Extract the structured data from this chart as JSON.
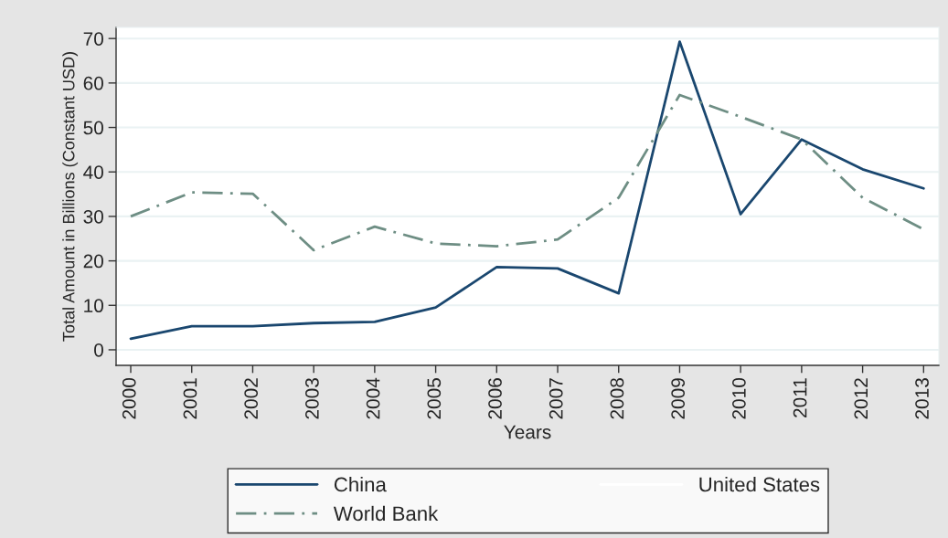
{
  "chart_data": {
    "type": "line",
    "xlabel": "Years",
    "ylabel": "Total Amount in Billions (Constant USD)",
    "x": [
      2000,
      2001,
      2002,
      2003,
      2004,
      2005,
      2006,
      2007,
      2008,
      2009,
      2010,
      2011,
      2012,
      2013
    ],
    "series": [
      {
        "name": "China",
        "color": "#1a476f",
        "line_style": "solid",
        "values": [
          2.5,
          5.3,
          5.3,
          6.0,
          6.3,
          9.5,
          18.6,
          18.3,
          12.7,
          69.3,
          30.5,
          47.3,
          40.6,
          36.3
        ]
      },
      {
        "name": "United States",
        "color": "#ffffff",
        "line_style": "solid",
        "values": [
          null,
          null,
          null,
          null,
          null,
          null,
          null,
          null,
          null,
          null,
          null,
          null,
          null,
          null
        ]
      },
      {
        "name": "World Bank",
        "color": "#6e8e84",
        "line_style": "dashdot",
        "values": [
          30.0,
          35.4,
          35.1,
          22.4,
          27.7,
          23.9,
          23.3,
          24.8,
          34.2,
          57.3,
          52.4,
          47.3,
          34.2,
          27.1
        ]
      }
    ],
    "xlim": [
      1999.76,
      2013.25
    ],
    "xticks": [
      2000,
      2001,
      2002,
      2003,
      2004,
      2005,
      2006,
      2007,
      2008,
      2009,
      2010,
      2011,
      2012,
      2013
    ],
    "ylim": [
      -3.5,
      72.5
    ],
    "yticks": [
      0,
      10,
      20,
      30,
      40,
      50,
      60,
      70
    ],
    "grid": "y",
    "legend": "bottom"
  }
}
